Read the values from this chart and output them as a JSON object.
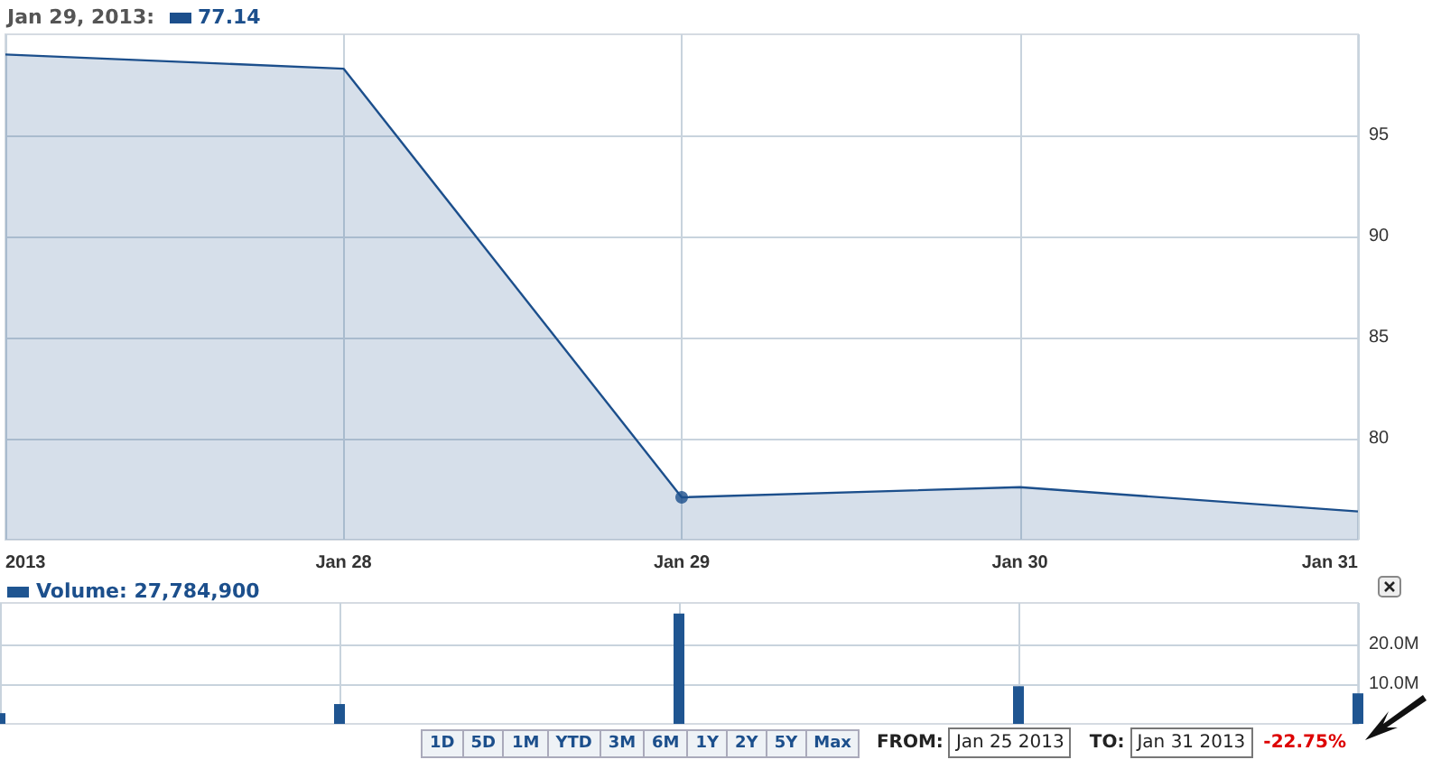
{
  "chart_data": [
    {
      "type": "area",
      "categories": [
        "2013",
        "Jan 28",
        "Jan 29",
        "Jan 30",
        "Jan 31"
      ],
      "series": [
        {
          "color": "#1c4f8c",
          "values": [
            99.0,
            98.3,
            77.1,
            77.6,
            76.4
          ]
        },
        {
          "type": "scatter",
          "color": "#1c4f8c",
          "x": [
            "Jan 29"
          ],
          "values": [
            77.1
          ]
        }
      ],
      "ylim": [
        75,
        100
      ],
      "yticks": [
        80,
        85,
        90,
        95
      ],
      "grid": true,
      "annotations": [
        "Jan 29, 2013:",
        "77.14"
      ]
    },
    {
      "type": "bar",
      "categories": [
        null,
        null,
        null,
        null,
        null
      ],
      "series": [
        {
          "color": "#1f5591",
          "values": [
            2.7,
            5.0,
            27.8,
            9.5,
            7.7
          ]
        }
      ],
      "ylim": [
        0,
        30.5
      ],
      "yticks": [
        {
          "value": 10,
          "label": "10.0M"
        },
        {
          "value": 20,
          "label": "20.0M"
        }
      ],
      "grid": true,
      "tick_labels": "y",
      "annotations": [
        "Volume: 27,784,900",
        "1D",
        "5D",
        "1M",
        "YTD",
        "3M",
        "6M",
        "1Y",
        "2Y",
        "5Y",
        "Max",
        "FROM:",
        "Jan 25 2013",
        "TO:",
        "Jan 31 2013",
        "-22.75%"
      ]
    }
  ]
}
